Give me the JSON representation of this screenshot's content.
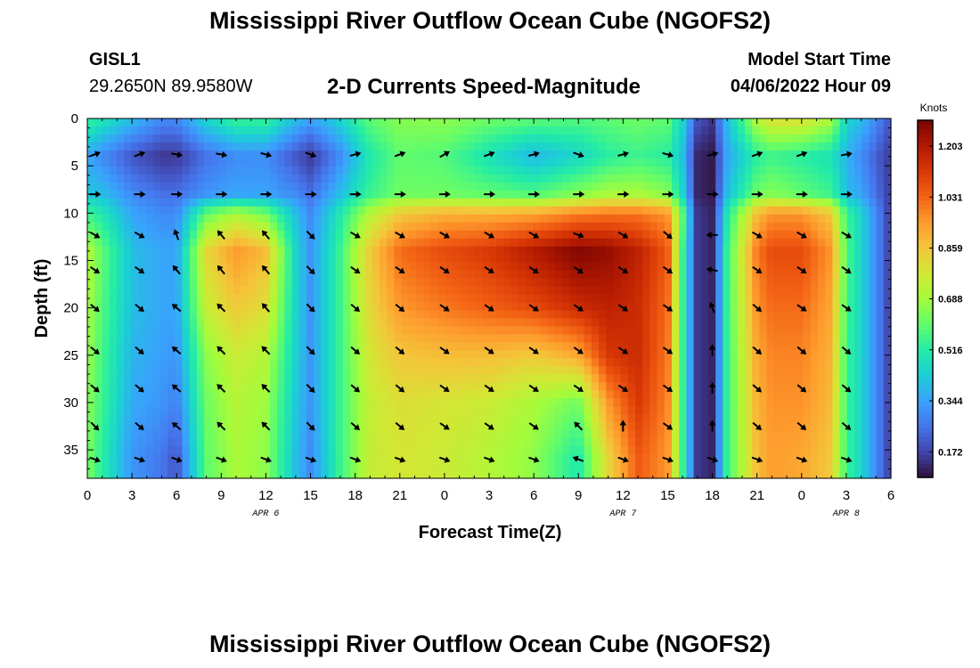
{
  "page": {
    "title": "Mississippi River Outflow Ocean Cube (NGOFS2)",
    "title_repeat": "Mississippi River Outflow Ocean Cube (NGOFS2)",
    "station_id": "GISL1",
    "station_coords": "29.2650N  89.9580W",
    "plot_title": "2-D Currents Speed-Magnitude",
    "model_start_label": "Model Start Time",
    "model_start_value": "04/06/2022 Hour 09"
  },
  "chart_data": {
    "type": "heatmap",
    "title": "2-D Currents Speed-Magnitude",
    "xlabel": "Forecast Time(Z)",
    "ylabel": "Depth (ft)",
    "x_start": "2022-04-06 00Z",
    "xlim_hours": [
      0,
      54
    ],
    "ylim": [
      0,
      38
    ],
    "y_inverted": true,
    "xticks": [
      {
        "hour": 0,
        "label": "0"
      },
      {
        "hour": 3,
        "label": "3"
      },
      {
        "hour": 6,
        "label": "6"
      },
      {
        "hour": 9,
        "label": "9"
      },
      {
        "hour": 12,
        "label": "12"
      },
      {
        "hour": 15,
        "label": "15"
      },
      {
        "hour": 18,
        "label": "18"
      },
      {
        "hour": 21,
        "label": "21"
      },
      {
        "hour": 24,
        "label": "0"
      },
      {
        "hour": 27,
        "label": "3"
      },
      {
        "hour": 30,
        "label": "6"
      },
      {
        "hour": 33,
        "label": "9"
      },
      {
        "hour": 36,
        "label": "12"
      },
      {
        "hour": 39,
        "label": "15"
      },
      {
        "hour": 42,
        "label": "18"
      },
      {
        "hour": 45,
        "label": "21"
      },
      {
        "hour": 48,
        "label": "0"
      },
      {
        "hour": 51,
        "label": "3"
      },
      {
        "hour": 54,
        "label": "6"
      }
    ],
    "date_labels": [
      {
        "hour": 12,
        "label": "APR 6"
      },
      {
        "hour": 36,
        "label": "APR 7"
      },
      {
        "hour": 51,
        "label": "APR 8"
      }
    ],
    "yticks": [
      0,
      5,
      10,
      15,
      20,
      25,
      30,
      35
    ],
    "colorbar": {
      "unit": "Knots",
      "min": 0.086,
      "max": 1.29,
      "ticks": [
        "1.203",
        "1.031",
        "0.859",
        "0.688",
        "0.516",
        "0.344",
        "0.172"
      ],
      "colormap": [
        "#30123b",
        "#4145ab",
        "#4675ed",
        "#39a2fc",
        "#1bcfd4",
        "#24eca6",
        "#61fc6c",
        "#a4fc3b",
        "#d1e834",
        "#f3c63a",
        "#fe9b2d",
        "#f36315",
        "#d93806",
        "#b11901",
        "#7a0402"
      ]
    },
    "speed_field": {
      "x_hours": [
        0,
        1,
        3,
        5,
        6,
        8,
        10,
        12,
        14,
        15,
        17,
        19,
        21,
        24,
        27,
        30,
        33,
        35,
        37,
        39,
        40,
        41,
        42,
        43,
        45,
        46,
        48,
        50,
        51,
        52,
        53,
        54
      ],
      "depth_ft": [
        0,
        4,
        8,
        10,
        14,
        20,
        25,
        30,
        36,
        38
      ],
      "values": [
        [
          0.55,
          0.5,
          0.4,
          0.3,
          0.3,
          0.45,
          0.55,
          0.55,
          0.4,
          0.35,
          0.45,
          0.6,
          0.65,
          0.66,
          0.62,
          0.6,
          0.58,
          0.6,
          0.62,
          0.6,
          0.45,
          0.2,
          0.15,
          0.4,
          0.72,
          0.8,
          0.8,
          0.7,
          0.45,
          0.4,
          0.3,
          0.2
        ],
        [
          0.35,
          0.3,
          0.2,
          0.15,
          0.15,
          0.25,
          0.3,
          0.3,
          0.2,
          0.15,
          0.3,
          0.5,
          0.6,
          0.58,
          0.48,
          0.38,
          0.45,
          0.52,
          0.55,
          0.52,
          0.4,
          0.12,
          0.1,
          0.35,
          0.52,
          0.55,
          0.52,
          0.48,
          0.38,
          0.3,
          0.22,
          0.15
        ],
        [
          0.42,
          0.4,
          0.3,
          0.25,
          0.25,
          0.32,
          0.35,
          0.35,
          0.3,
          0.25,
          0.4,
          0.55,
          0.62,
          0.62,
          0.6,
          0.58,
          0.65,
          0.7,
          0.7,
          0.65,
          0.45,
          0.12,
          0.1,
          0.4,
          0.62,
          0.65,
          0.6,
          0.55,
          0.4,
          0.35,
          0.25,
          0.15
        ],
        [
          0.55,
          0.5,
          0.35,
          0.3,
          0.3,
          0.6,
          0.7,
          0.62,
          0.4,
          0.3,
          0.5,
          0.72,
          0.85,
          0.9,
          0.9,
          0.92,
          0.98,
          1.0,
          1.0,
          0.95,
          0.6,
          0.15,
          0.12,
          0.5,
          0.88,
          0.95,
          0.95,
          0.85,
          0.55,
          0.45,
          0.3,
          0.15
        ],
        [
          0.72,
          0.6,
          0.4,
          0.35,
          0.35,
          0.82,
          0.95,
          0.88,
          0.45,
          0.32,
          0.55,
          0.85,
          1.02,
          1.08,
          1.12,
          1.2,
          1.28,
          1.25,
          1.18,
          1.05,
          0.55,
          0.15,
          0.12,
          0.55,
          1.0,
          1.08,
          1.08,
          0.95,
          0.58,
          0.45,
          0.3,
          0.15
        ],
        [
          0.7,
          0.58,
          0.4,
          0.35,
          0.35,
          0.75,
          0.85,
          0.8,
          0.45,
          0.32,
          0.55,
          0.82,
          0.95,
          1.0,
          1.04,
          1.08,
          1.15,
          1.18,
          1.15,
          1.02,
          0.55,
          0.15,
          0.12,
          0.55,
          0.96,
          1.02,
          1.02,
          0.92,
          0.56,
          0.45,
          0.3,
          0.15
        ],
        [
          0.68,
          0.56,
          0.38,
          0.34,
          0.32,
          0.66,
          0.76,
          0.72,
          0.44,
          0.32,
          0.55,
          0.78,
          0.86,
          0.88,
          0.88,
          0.85,
          0.92,
          1.12,
          1.15,
          1.0,
          0.55,
          0.15,
          0.12,
          0.55,
          0.92,
          0.98,
          0.98,
          0.9,
          0.55,
          0.45,
          0.3,
          0.15
        ],
        [
          0.66,
          0.55,
          0.36,
          0.32,
          0.28,
          0.62,
          0.72,
          0.68,
          0.42,
          0.32,
          0.55,
          0.75,
          0.8,
          0.78,
          0.76,
          0.7,
          0.62,
          0.95,
          1.12,
          0.98,
          0.55,
          0.15,
          0.12,
          0.55,
          0.9,
          0.96,
          0.96,
          0.88,
          0.55,
          0.45,
          0.3,
          0.15
        ],
        [
          0.64,
          0.52,
          0.32,
          0.26,
          0.2,
          0.6,
          0.7,
          0.66,
          0.4,
          0.3,
          0.55,
          0.75,
          0.78,
          0.76,
          0.72,
          0.66,
          0.5,
          0.82,
          1.05,
          0.95,
          0.55,
          0.15,
          0.12,
          0.55,
          0.88,
          0.94,
          0.92,
          0.85,
          0.55,
          0.45,
          0.3,
          0.15
        ],
        [
          0.64,
          0.52,
          0.32,
          0.26,
          0.2,
          0.6,
          0.7,
          0.66,
          0.4,
          0.3,
          0.55,
          0.75,
          0.78,
          0.76,
          0.72,
          0.66,
          0.5,
          0.82,
          1.05,
          0.95,
          0.55,
          0.15,
          0.12,
          0.55,
          0.88,
          0.94,
          0.92,
          0.85,
          0.55,
          0.45,
          0.3,
          0.15
        ]
      ]
    },
    "vectors": {
      "x_hours": [
        0.5,
        3.5,
        6,
        9,
        12,
        15,
        18,
        21,
        24,
        27,
        30,
        33,
        36,
        39,
        42,
        45,
        48,
        51
      ],
      "depth_ft": [
        3.8,
        8,
        12.3,
        16,
        20,
        24.5,
        28.5,
        32.5,
        36
      ],
      "rows_deg": [
        [
          20,
          20,
          -10,
          -10,
          -15,
          -20,
          15,
          20,
          30,
          20,
          15,
          -20,
          15,
          -15,
          15,
          20,
          20,
          10
        ],
        [
          0,
          0,
          0,
          0,
          0,
          0,
          0,
          0,
          0,
          0,
          0,
          0,
          0,
          0,
          0,
          0,
          0,
          0
        ],
        [
          -30,
          -30,
          110,
          130,
          130,
          -45,
          -30,
          -30,
          -30,
          -30,
          -30,
          -20,
          -30,
          -40,
          180,
          -30,
          -30,
          -30
        ],
        [
          -35,
          -35,
          130,
          130,
          130,
          -45,
          -35,
          -35,
          -35,
          -35,
          -35,
          -35,
          -35,
          -35,
          170,
          -35,
          -35,
          -35
        ],
        [
          -40,
          -40,
          140,
          135,
          130,
          -45,
          -40,
          -40,
          -35,
          -35,
          -35,
          -35,
          -35,
          -35,
          110,
          -40,
          -35,
          -35
        ],
        [
          -40,
          -40,
          140,
          135,
          135,
          -45,
          -40,
          -40,
          -35,
          -35,
          -35,
          -35,
          -35,
          -35,
          90,
          -40,
          -40,
          -40
        ],
        [
          -40,
          -40,
          140,
          135,
          135,
          -45,
          -40,
          -40,
          -35,
          -35,
          -35,
          -35,
          -35,
          -35,
          90,
          -40,
          -40,
          -40
        ],
        [
          -45,
          -40,
          140,
          135,
          135,
          -45,
          -40,
          -40,
          -35,
          -35,
          -35,
          135,
          90,
          -35,
          90,
          -40,
          -40,
          -40
        ],
        [
          -20,
          -20,
          -20,
          -20,
          -20,
          -20,
          -20,
          -20,
          -20,
          -20,
          -20,
          160,
          -20,
          -20,
          -20,
          -20,
          -20,
          -20
        ]
      ]
    }
  }
}
